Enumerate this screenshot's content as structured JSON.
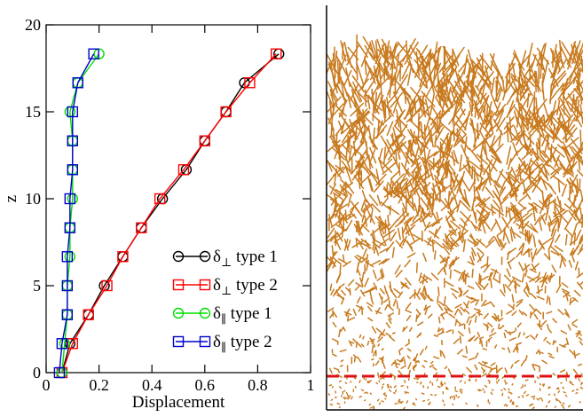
{
  "chart_data": {
    "type": "line",
    "xlabel": "Displacement",
    "ylabel": "z",
    "xlim": [
      0,
      1
    ],
    "ylim": [
      0,
      20
    ],
    "x_ticks": [
      "0",
      "0.2",
      "0.4",
      "0.6",
      "0.8",
      "1"
    ],
    "x_tick_values": [
      0,
      0.2,
      0.4,
      0.6,
      0.8,
      1.0
    ],
    "y_ticks": [
      "0",
      "5",
      "10",
      "15",
      "20"
    ],
    "y_tick_values": [
      0,
      5,
      10,
      15,
      20
    ],
    "grid": false,
    "legend_position": "bottom-right",
    "series": [
      {
        "name": "δ⊥ type 1",
        "legend_symbol": "δ",
        "legend_subscript": "⊥",
        "legend_suffix": " type 1",
        "color": "#000000",
        "marker": "circle",
        "points": [
          [
            0.06,
            0
          ],
          [
            0.09,
            1.67
          ],
          [
            0.16,
            3.33
          ],
          [
            0.22,
            5.0
          ],
          [
            0.29,
            6.67
          ],
          [
            0.36,
            8.33
          ],
          [
            0.44,
            10.0
          ],
          [
            0.53,
            11.67
          ],
          [
            0.6,
            13.33
          ],
          [
            0.68,
            15.0
          ],
          [
            0.75,
            16.67
          ],
          [
            0.88,
            18.33
          ]
        ]
      },
      {
        "name": "δ⊥ type 2",
        "legend_symbol": "δ",
        "legend_subscript": "⊥",
        "legend_suffix": " type 2",
        "color": "#ff0000",
        "marker": "square",
        "points": [
          [
            0.06,
            0
          ],
          [
            0.1,
            1.67
          ],
          [
            0.16,
            3.33
          ],
          [
            0.23,
            5.0
          ],
          [
            0.29,
            6.67
          ],
          [
            0.36,
            8.33
          ],
          [
            0.43,
            10.0
          ],
          [
            0.52,
            11.67
          ],
          [
            0.6,
            13.33
          ],
          [
            0.68,
            15.0
          ],
          [
            0.77,
            16.67
          ],
          [
            0.87,
            18.33
          ]
        ]
      },
      {
        "name": "δ∥ type 1",
        "legend_symbol": "δ",
        "legend_subscript": "∥",
        "legend_suffix": " type 1",
        "color": "#00dd00",
        "marker": "circle",
        "points": [
          [
            0.06,
            0
          ],
          [
            0.07,
            1.67
          ],
          [
            0.08,
            3.33
          ],
          [
            0.08,
            5.0
          ],
          [
            0.09,
            6.67
          ],
          [
            0.09,
            8.33
          ],
          [
            0.1,
            10.0
          ],
          [
            0.1,
            11.67
          ],
          [
            0.1,
            13.33
          ],
          [
            0.09,
            15.0
          ],
          [
            0.12,
            16.67
          ],
          [
            0.2,
            18.33
          ]
        ]
      },
      {
        "name": "δ∥ type 2",
        "legend_symbol": "δ",
        "legend_subscript": "∥",
        "legend_suffix": " type 2",
        "color": "#0000cc",
        "marker": "square",
        "points": [
          [
            0.05,
            0
          ],
          [
            0.06,
            1.67
          ],
          [
            0.08,
            3.33
          ],
          [
            0.08,
            5.0
          ],
          [
            0.08,
            6.67
          ],
          [
            0.09,
            8.33
          ],
          [
            0.09,
            10.0
          ],
          [
            0.1,
            11.67
          ],
          [
            0.1,
            13.33
          ],
          [
            0.1,
            15.0
          ],
          [
            0.12,
            16.67
          ],
          [
            0.18,
            18.33
          ]
        ]
      }
    ]
  },
  "snapshot": {
    "rod_color": "#c87a1e",
    "reference_line_color": "#dd1111"
  }
}
